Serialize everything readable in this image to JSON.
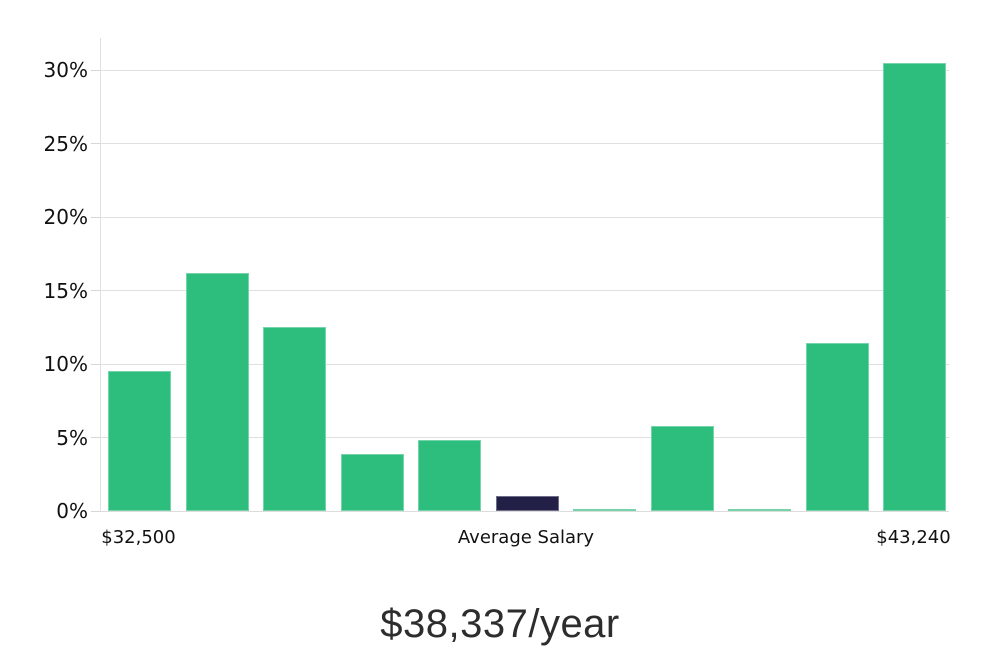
{
  "chart_data": {
    "type": "bar",
    "title": "$38,337/year",
    "xlabel": "",
    "ylabel": "",
    "ylim": [
      0,
      32.2
    ],
    "grid": "horizontal",
    "legend": "none",
    "y_ticks": [
      {
        "value": 0,
        "label": "0%"
      },
      {
        "value": 5,
        "label": "5%"
      },
      {
        "value": 10,
        "label": "10%"
      },
      {
        "value": 15,
        "label": "15%"
      },
      {
        "value": 20,
        "label": "20%"
      },
      {
        "value": 25,
        "label": "25%"
      },
      {
        "value": 30,
        "label": "30%"
      }
    ],
    "bars": [
      {
        "value": 9.5,
        "color": "green"
      },
      {
        "value": 16.2,
        "color": "green"
      },
      {
        "value": 12.5,
        "color": "green"
      },
      {
        "value": 3.9,
        "color": "green"
      },
      {
        "value": 4.8,
        "color": "green"
      },
      {
        "value": 1.0,
        "color": "navy",
        "role": "average-salary-marker"
      },
      {
        "value": 0.1,
        "color": "green"
      },
      {
        "value": 5.8,
        "color": "green"
      },
      {
        "value": 0.1,
        "color": "green"
      },
      {
        "value": 11.4,
        "color": "green"
      },
      {
        "value": 30.5,
        "color": "green"
      }
    ],
    "x_axis_labels": [
      {
        "text": "$32,500",
        "bar_index": 0
      },
      {
        "text": "Average Salary",
        "bar_index": 5
      },
      {
        "text": "$43,240",
        "bar_index": 10
      }
    ],
    "colors": {
      "bar_green": "#2dbe7d",
      "bar_navy": "#232048",
      "gridline": "#e0e0e0",
      "axis_text": "#111111",
      "title_text": "#2d2d2d"
    }
  }
}
